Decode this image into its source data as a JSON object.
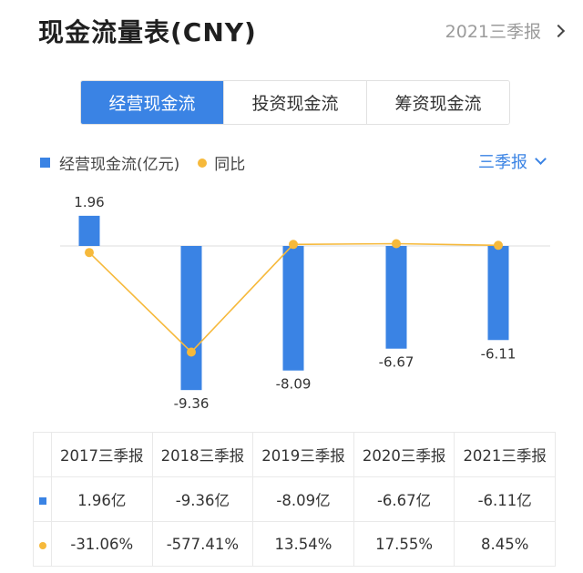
{
  "header": {
    "title": "现金流量表(CNY)",
    "period_link": "2021三季报"
  },
  "tabs": [
    {
      "label": "经营现金流",
      "active": true
    },
    {
      "label": "投资现金流",
      "active": false
    },
    {
      "label": "筹资现金流",
      "active": false
    }
  ],
  "legend": {
    "bar_label": "经营现金流(亿元)",
    "line_label": "同比"
  },
  "period_select": "三季报",
  "colors": {
    "bar": "#3a83e4",
    "line": "#f6b93b",
    "negative_pct": "#1fa35c",
    "positive_pct": "#e0454e"
  },
  "chart_data": {
    "type": "bar",
    "categories": [
      "2017三季报",
      "2018三季报",
      "2019三季报",
      "2020三季报",
      "2021三季报"
    ],
    "series": [
      {
        "name": "经营现金流(亿元)",
        "type": "bar",
        "values": [
          1.96,
          -9.36,
          -8.09,
          -6.67,
          -6.11
        ],
        "labels": [
          "1.96",
          "-9.36",
          "-8.09",
          "-6.67",
          "-6.11"
        ]
      },
      {
        "name": "同比",
        "type": "line",
        "values": [
          -31.06,
          -577.41,
          13.54,
          17.55,
          8.45
        ]
      }
    ]
  },
  "table": {
    "headers": [
      "2017三季报",
      "2018三季报",
      "2019三季报",
      "2020三季报",
      "2021三季报"
    ],
    "cash_row": [
      "1.96亿",
      "-9.36亿",
      "-8.09亿",
      "-6.67亿",
      "-6.11亿"
    ],
    "yoy_row": [
      "-31.06%",
      "-577.41%",
      "13.54%",
      "17.55%",
      "8.45%"
    ]
  }
}
